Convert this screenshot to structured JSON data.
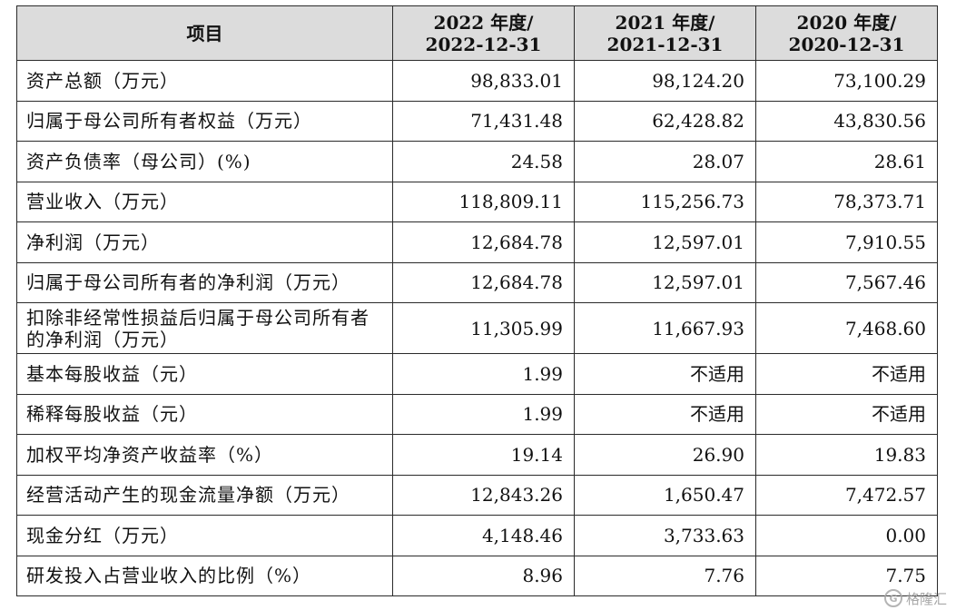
{
  "table": {
    "headers": [
      {
        "line1": "项目",
        "line2": ""
      },
      {
        "line1": "2022 年度/",
        "line2": "2022-12-31"
      },
      {
        "line1": "2021 年度/",
        "line2": "2021-12-31"
      },
      {
        "line1": "2020 年度/",
        "line2": "2020-12-31"
      }
    ],
    "rows": [
      {
        "label": "资产总额（万元）",
        "values": [
          "98,833.01",
          "98,124.20",
          "73,100.29"
        ]
      },
      {
        "label": "归属于母公司所有者权益（万元）",
        "values": [
          "71,431.48",
          "62,428.82",
          "43,830.56"
        ]
      },
      {
        "label": "资产负债率（母公司）(%)",
        "values": [
          "24.58",
          "28.07",
          "28.61"
        ]
      },
      {
        "label": "营业收入（万元）",
        "values": [
          "118,809.11",
          "115,256.73",
          "78,373.71"
        ]
      },
      {
        "label": "净利润（万元）",
        "values": [
          "12,684.78",
          "12,597.01",
          "7,910.55"
        ]
      },
      {
        "label": "归属于母公司所有者的净利润（万元）",
        "values": [
          "12,684.78",
          "12,597.01",
          "7,567.46"
        ]
      },
      {
        "label": "扣除非经常性损益后归属于母公司所有者的净利润（万元）",
        "values": [
          "11,305.99",
          "11,667.93",
          "7,468.60"
        ]
      },
      {
        "label": "基本每股收益（元）",
        "values": [
          "1.99",
          "不适用",
          "不适用"
        ]
      },
      {
        "label": "稀释每股收益（元）",
        "values": [
          "1.99",
          "不适用",
          "不适用"
        ]
      },
      {
        "label": "加权平均净资产收益率（%）",
        "values": [
          "19.14",
          "26.90",
          "19.83"
        ]
      },
      {
        "label": "经营活动产生的现金流量净额（万元）",
        "values": [
          "12,843.26",
          "1,650.47",
          "7,472.57"
        ]
      },
      {
        "label": "现金分红（万元）",
        "values": [
          "4,148.46",
          "3,733.63",
          "0.00"
        ]
      },
      {
        "label": "研发投入占营业收入的比例（%）",
        "values": [
          "8.96",
          "7.76",
          "7.75"
        ]
      }
    ]
  },
  "watermark": {
    "icon": "gelonghui-logo-icon",
    "text": "格隆汇"
  }
}
